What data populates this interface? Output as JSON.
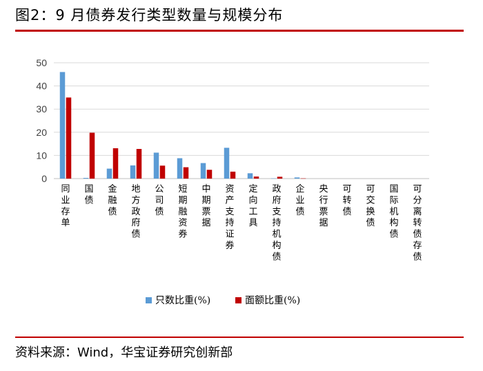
{
  "figure": {
    "title": "图2：9 月债券发行类型数量与规模分布",
    "source": "资料来源：Wind，华宝证券研究创新部"
  },
  "colors": {
    "series1": "#5b9bd5",
    "series2": "#c00000",
    "rule": "#c00000",
    "grid": "#d9d9d9"
  },
  "chart_data": {
    "type": "bar",
    "title": "",
    "xlabel": "",
    "ylabel": "",
    "ylim": [
      0,
      50
    ],
    "yticks": [
      0,
      10,
      20,
      30,
      40,
      50
    ],
    "grid": true,
    "legend_position": "bottom",
    "categories": [
      "同业存单",
      "国债",
      "金融债",
      "地方政府债",
      "公司债",
      "短期融资券",
      "中期票据",
      "资产支持证券",
      "定向工具",
      "政府支持机构债",
      "企业债",
      "央行票据",
      "可转债",
      "可交换债",
      "国际机构债",
      "可分离转债存债"
    ],
    "series": [
      {
        "name": "只数比重(%)",
        "values": [
          46,
          0.3,
          4.3,
          5.7,
          11.2,
          8.8,
          6.7,
          13.3,
          2.3,
          0.1,
          0.5,
          0,
          0,
          0,
          0,
          0
        ]
      },
      {
        "name": "面额比重(%)",
        "values": [
          35,
          19.8,
          13.1,
          12.8,
          5.6,
          4.9,
          3.8,
          3.0,
          0.9,
          0.8,
          0.1,
          0,
          0,
          0,
          0,
          0
        ]
      }
    ]
  }
}
